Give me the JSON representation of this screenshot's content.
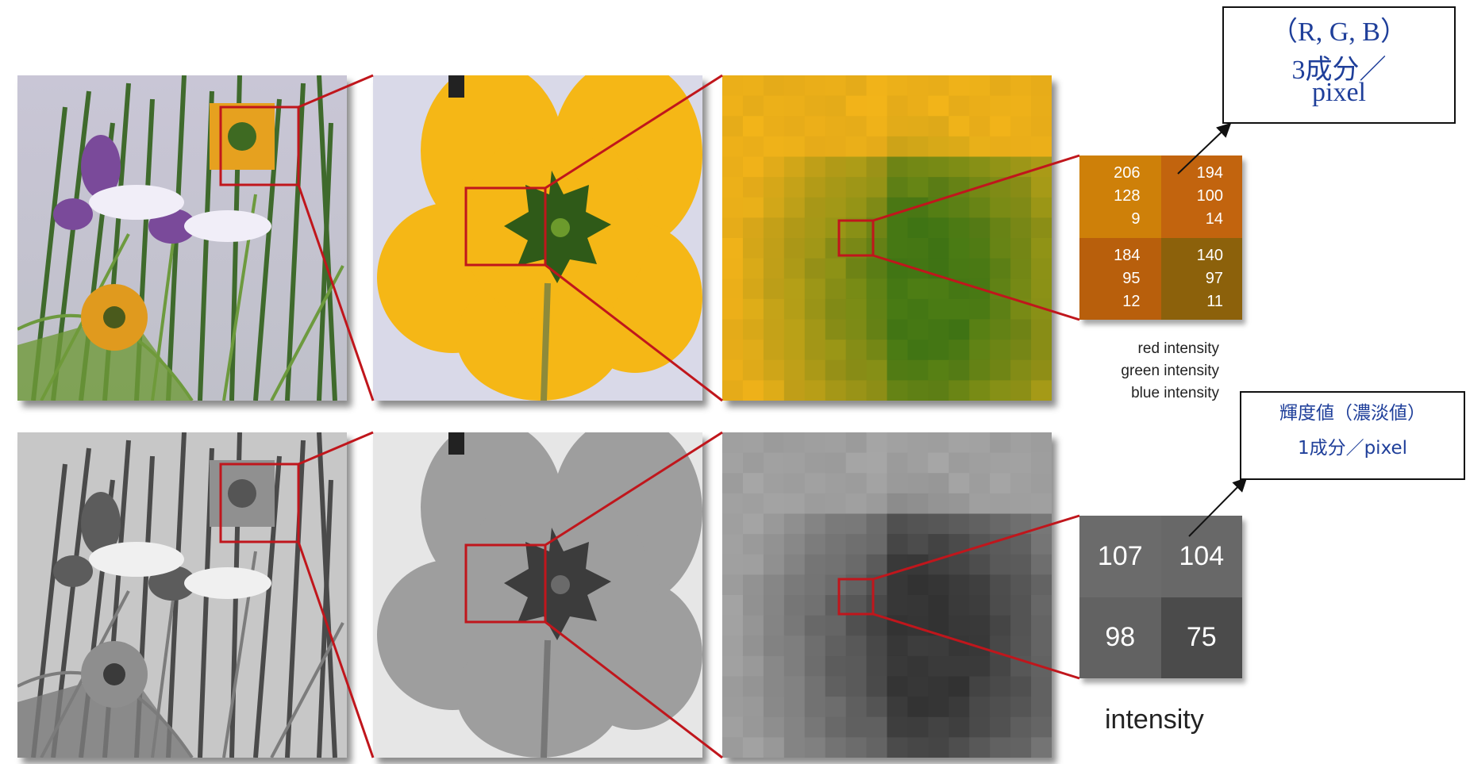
{
  "color_pixel_values": [
    {
      "r": "206",
      "g": "128",
      "b": "9"
    },
    {
      "r": "194",
      "g": "100",
      "b": "14"
    },
    {
      "r": "184",
      "g": "95",
      "b": "12"
    },
    {
      "r": "140",
      "g": "97",
      "b": "11"
    }
  ],
  "color_channel_labels": [
    "red intensity",
    "green intensity",
    "blue intensity"
  ],
  "gray_pixel_values": [
    "107",
    "104",
    "98",
    "75"
  ],
  "gray_value_label": "intensity",
  "callout_rgb": {
    "line1": "（R, G, B）",
    "line2": "3成分／",
    "line3": "pixel"
  },
  "callout_gray": {
    "line1": "輝度値（濃淡値）",
    "line2": "1成分／pixel"
  },
  "colors": {
    "zoom_frame": "#c0161c",
    "callout_text": "#1f3f9a",
    "rgb_cells": [
      "#ce8009",
      "#c2640e",
      "#b85f0c",
      "#8c610b"
    ],
    "gray_cells": [
      "#6b6b6b",
      "#686868",
      "#626262",
      "#4b4b4b"
    ]
  }
}
